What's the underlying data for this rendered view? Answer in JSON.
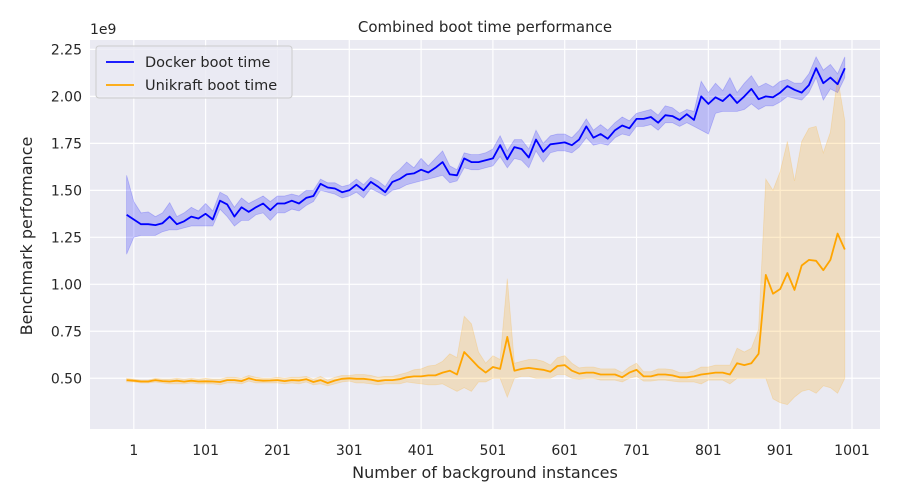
{
  "chart_data": {
    "type": "line",
    "title": "Combined boot time performance",
    "xlabel": "Number of background instances",
    "ylabel": "Benchmark performance",
    "y_offset_text": "1e9",
    "xlim": [
      -60,
      1040
    ],
    "ylim": [
      0.23,
      2.3
    ],
    "x_ticks": [
      1,
      101,
      201,
      301,
      401,
      501,
      601,
      701,
      801,
      901,
      1001
    ],
    "x_tick_labels": [
      "1",
      "101",
      "201",
      "301",
      "401",
      "501",
      "601",
      "701",
      "801",
      "901",
      "1001"
    ],
    "y_ticks": [
      0.5,
      0.75,
      1.0,
      1.25,
      1.5,
      1.75,
      2.0,
      2.25
    ],
    "y_tick_labels": [
      "0.50",
      "0.75",
      "1.00",
      "1.25",
      "1.50",
      "1.75",
      "2.00",
      "2.25"
    ],
    "grid": true,
    "legend_position": "top-left",
    "background_color": "#eaeaf2",
    "x": [
      -9,
      1,
      11,
      21,
      31,
      41,
      51,
      61,
      71,
      81,
      91,
      101,
      111,
      121,
      131,
      141,
      151,
      161,
      171,
      181,
      191,
      201,
      211,
      221,
      231,
      241,
      251,
      261,
      271,
      281,
      291,
      301,
      311,
      321,
      331,
      341,
      351,
      361,
      371,
      381,
      391,
      401,
      411,
      421,
      431,
      441,
      451,
      461,
      471,
      481,
      491,
      501,
      511,
      521,
      531,
      541,
      551,
      561,
      571,
      581,
      591,
      601,
      611,
      621,
      631,
      641,
      651,
      661,
      671,
      681,
      691,
      701,
      711,
      721,
      731,
      741,
      751,
      761,
      771,
      781,
      791,
      801,
      811,
      821,
      831,
      841,
      851,
      861,
      871,
      881,
      891,
      901,
      911,
      921,
      931,
      941,
      951,
      961,
      971,
      981,
      991
    ],
    "series": [
      {
        "name": "Docker boot time",
        "color": "#0000ff",
        "values": [
          1.37,
          1.345,
          1.32,
          1.32,
          1.315,
          1.325,
          1.36,
          1.32,
          1.335,
          1.36,
          1.35,
          1.375,
          1.345,
          1.445,
          1.425,
          1.36,
          1.41,
          1.385,
          1.41,
          1.43,
          1.395,
          1.43,
          1.43,
          1.445,
          1.43,
          1.46,
          1.47,
          1.535,
          1.515,
          1.51,
          1.49,
          1.5,
          1.53,
          1.5,
          1.545,
          1.52,
          1.49,
          1.545,
          1.56,
          1.585,
          1.59,
          1.61,
          1.595,
          1.62,
          1.65,
          1.585,
          1.58,
          1.67,
          1.65,
          1.65,
          1.66,
          1.67,
          1.74,
          1.665,
          1.73,
          1.72,
          1.675,
          1.77,
          1.705,
          1.745,
          1.75,
          1.755,
          1.74,
          1.77,
          1.84,
          1.78,
          1.8,
          1.775,
          1.82,
          1.845,
          1.83,
          1.88,
          1.88,
          1.89,
          1.86,
          1.9,
          1.895,
          1.875,
          1.905,
          1.875,
          2.0,
          1.96,
          1.995,
          1.975,
          2.01,
          1.965,
          2.0,
          2.04,
          1.985,
          2.0,
          1.995,
          2.02,
          2.055,
          2.035,
          2.02,
          2.06,
          2.15,
          2.07,
          2.1,
          2.065,
          2.15
        ],
        "lower": [
          1.16,
          1.25,
          1.26,
          1.26,
          1.26,
          1.28,
          1.29,
          1.29,
          1.3,
          1.31,
          1.31,
          1.31,
          1.31,
          1.4,
          1.36,
          1.31,
          1.34,
          1.34,
          1.37,
          1.38,
          1.34,
          1.38,
          1.38,
          1.4,
          1.39,
          1.42,
          1.44,
          1.5,
          1.49,
          1.48,
          1.46,
          1.47,
          1.49,
          1.46,
          1.51,
          1.49,
          1.47,
          1.5,
          1.51,
          1.53,
          1.54,
          1.55,
          1.56,
          1.57,
          1.58,
          1.54,
          1.55,
          1.62,
          1.61,
          1.61,
          1.62,
          1.63,
          1.68,
          1.62,
          1.67,
          1.66,
          1.62,
          1.71,
          1.65,
          1.7,
          1.71,
          1.71,
          1.7,
          1.73,
          1.78,
          1.74,
          1.75,
          1.74,
          1.78,
          1.8,
          1.79,
          1.84,
          1.84,
          1.85,
          1.82,
          1.86,
          1.86,
          1.84,
          1.86,
          1.84,
          1.82,
          1.8,
          1.91,
          1.92,
          1.92,
          1.92,
          1.93,
          1.96,
          1.93,
          1.95,
          1.95,
          1.97,
          2.0,
          1.99,
          1.98,
          2.02,
          2.1,
          1.98,
          2.04,
          2.02,
          2.1
        ],
        "upper": [
          1.58,
          1.44,
          1.38,
          1.385,
          1.36,
          1.38,
          1.435,
          1.36,
          1.38,
          1.41,
          1.39,
          1.43,
          1.39,
          1.49,
          1.47,
          1.41,
          1.46,
          1.43,
          1.45,
          1.47,
          1.44,
          1.47,
          1.47,
          1.48,
          1.47,
          1.5,
          1.5,
          1.56,
          1.54,
          1.54,
          1.52,
          1.53,
          1.56,
          1.53,
          1.57,
          1.55,
          1.52,
          1.58,
          1.61,
          1.65,
          1.62,
          1.67,
          1.63,
          1.67,
          1.71,
          1.63,
          1.61,
          1.7,
          1.69,
          1.69,
          1.7,
          1.72,
          1.79,
          1.71,
          1.77,
          1.77,
          1.72,
          1.82,
          1.75,
          1.79,
          1.8,
          1.8,
          1.78,
          1.82,
          1.88,
          1.82,
          1.85,
          1.82,
          1.86,
          1.89,
          1.87,
          1.91,
          1.92,
          1.93,
          1.9,
          1.95,
          1.94,
          1.91,
          1.93,
          1.92,
          2.08,
          2.02,
          2.07,
          2.03,
          2.1,
          2.02,
          2.07,
          2.11,
          2.05,
          2.07,
          2.05,
          2.08,
          2.09,
          2.07,
          2.07,
          2.12,
          2.21,
          2.14,
          2.17,
          2.12,
          2.21
        ]
      },
      {
        "name": "Unikraft boot time",
        "color": "#ffa500",
        "values": [
          0.49,
          0.487,
          0.483,
          0.483,
          0.49,
          0.485,
          0.483,
          0.487,
          0.482,
          0.487,
          0.483,
          0.484,
          0.483,
          0.48,
          0.49,
          0.49,
          0.485,
          0.5,
          0.49,
          0.487,
          0.488,
          0.49,
          0.485,
          0.49,
          0.488,
          0.495,
          0.48,
          0.49,
          0.475,
          0.488,
          0.497,
          0.5,
          0.497,
          0.497,
          0.493,
          0.485,
          0.49,
          0.49,
          0.495,
          0.505,
          0.51,
          0.51,
          0.515,
          0.515,
          0.53,
          0.54,
          0.52,
          0.64,
          0.6,
          0.56,
          0.53,
          0.56,
          0.55,
          0.72,
          0.54,
          0.55,
          0.555,
          0.55,
          0.545,
          0.535,
          0.565,
          0.57,
          0.54,
          0.525,
          0.53,
          0.53,
          0.52,
          0.52,
          0.52,
          0.505,
          0.53,
          0.545,
          0.51,
          0.51,
          0.52,
          0.52,
          0.515,
          0.505,
          0.505,
          0.51,
          0.52,
          0.525,
          0.53,
          0.53,
          0.52,
          0.58,
          0.57,
          0.58,
          0.63,
          1.05,
          0.95,
          0.975,
          1.06,
          0.97,
          1.1,
          1.13,
          1.125,
          1.075,
          1.13,
          1.27,
          1.185
        ],
        "lower": [
          0.48,
          0.48,
          0.475,
          0.475,
          0.48,
          0.475,
          0.47,
          0.47,
          0.47,
          0.475,
          0.47,
          0.47,
          0.47,
          0.465,
          0.475,
          0.475,
          0.47,
          0.485,
          0.475,
          0.475,
          0.475,
          0.475,
          0.47,
          0.475,
          0.47,
          0.48,
          0.465,
          0.47,
          0.46,
          0.47,
          0.48,
          0.485,
          0.475,
          0.475,
          0.47,
          0.465,
          0.47,
          0.47,
          0.47,
          0.48,
          0.475,
          0.47,
          0.465,
          0.465,
          0.47,
          0.45,
          0.43,
          0.45,
          0.43,
          0.48,
          0.48,
          0.5,
          0.5,
          0.4,
          0.5,
          0.51,
          0.51,
          0.5,
          0.5,
          0.5,
          0.52,
          0.52,
          0.5,
          0.495,
          0.5,
          0.5,
          0.49,
          0.49,
          0.49,
          0.48,
          0.5,
          0.51,
          0.485,
          0.485,
          0.49,
          0.49,
          0.485,
          0.48,
          0.48,
          0.48,
          0.47,
          0.49,
          0.49,
          0.49,
          0.47,
          0.5,
          0.5,
          0.5,
          0.5,
          0.5,
          0.39,
          0.37,
          0.36,
          0.4,
          0.43,
          0.44,
          0.42,
          0.46,
          0.45,
          0.42,
          0.5
        ],
        "upper": [
          0.5,
          0.495,
          0.49,
          0.49,
          0.5,
          0.495,
          0.495,
          0.5,
          0.495,
          0.5,
          0.495,
          0.5,
          0.495,
          0.495,
          0.505,
          0.505,
          0.5,
          0.515,
          0.505,
          0.5,
          0.5,
          0.505,
          0.5,
          0.505,
          0.505,
          0.51,
          0.495,
          0.51,
          0.49,
          0.505,
          0.515,
          0.515,
          0.52,
          0.52,
          0.515,
          0.505,
          0.51,
          0.51,
          0.52,
          0.53,
          0.545,
          0.55,
          0.565,
          0.57,
          0.59,
          0.63,
          0.61,
          0.83,
          0.79,
          0.64,
          0.58,
          0.62,
          0.6,
          1.03,
          0.58,
          0.59,
          0.6,
          0.6,
          0.59,
          0.57,
          0.61,
          0.62,
          0.58,
          0.555,
          0.56,
          0.56,
          0.55,
          0.55,
          0.55,
          0.53,
          0.56,
          0.58,
          0.535,
          0.535,
          0.55,
          0.55,
          0.545,
          0.53,
          0.53,
          0.54,
          0.56,
          0.56,
          0.57,
          0.57,
          0.57,
          0.66,
          0.64,
          0.66,
          0.76,
          1.56,
          1.5,
          1.6,
          1.76,
          1.55,
          1.76,
          1.83,
          1.84,
          1.7,
          1.81,
          2.1,
          1.87
        ]
      }
    ]
  }
}
